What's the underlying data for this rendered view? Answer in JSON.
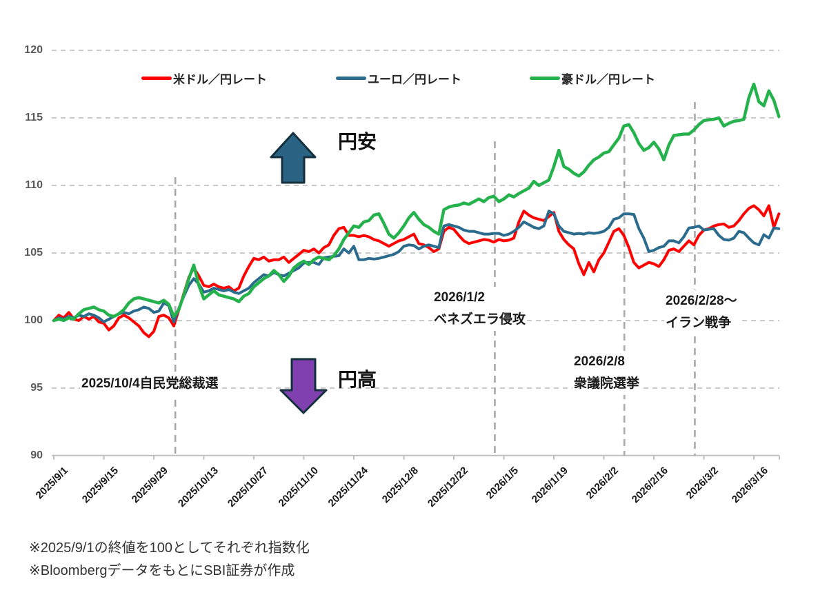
{
  "chart": {
    "y_axis": {
      "min": 90,
      "max": 120,
      "step": 5,
      "labels": [
        "120",
        "115",
        "110",
        "105",
        "100",
        "95",
        "90"
      ]
    },
    "x_axis": {
      "tick_labels": [
        "2025/9/1",
        "2025/9/15",
        "2025/9/29",
        "2025/10/13",
        "2025/10/27",
        "2025/11/10",
        "2025/11/24",
        "2025/12/8",
        "2025/12/22",
        "2026/1/5",
        "2026/1/19",
        "2026/2/2",
        "2026/2/16",
        "2026/3/2",
        "2026/3/16"
      ],
      "weekdays_per_tick": 10
    },
    "legend_position": "top"
  },
  "chart_data": {
    "type": "line",
    "title": "",
    "xlabel": "",
    "ylabel": "",
    "ylim": [
      90,
      120
    ],
    "grid": true,
    "x_unit": "weekday index from 2025/9/1 (every weekday, 0-145)",
    "x_tick_labels": [
      "2025/9/1",
      "2025/9/15",
      "2025/9/29",
      "2025/10/13",
      "2025/10/27",
      "2025/11/10",
      "2025/11/24",
      "2025/12/8",
      "2025/12/22",
      "2026/1/5",
      "2026/1/19",
      "2026/2/2",
      "2026/2/16",
      "2026/3/2",
      "2026/3/16"
    ],
    "x_tick_indices": [
      0,
      10,
      20,
      30,
      40,
      50,
      60,
      70,
      80,
      90,
      100,
      110,
      120,
      130,
      140
    ],
    "series": [
      {
        "name": "米ドル／円レート",
        "color": "#ff0000",
        "values": [
          100,
          100.4,
          100.2,
          100.6,
          100.1,
          100,
          100.3,
          100.1,
          100.3,
          99.9,
          99.8,
          99.3,
          99.6,
          100.2,
          100.4,
          100.2,
          99.9,
          99.6,
          99.1,
          98.8,
          99.2,
          100.3,
          100.4,
          100.2,
          99.6,
          100.8,
          102,
          103.2,
          103.9,
          103.3,
          102.6,
          102.5,
          102.7,
          102.5,
          102.4,
          102.5,
          102.2,
          102.4,
          103.3,
          104,
          104.6,
          104.5,
          104.7,
          104.4,
          104.5,
          104.5,
          104.7,
          104.3,
          104.6,
          104.9,
          105.2,
          105.1,
          105.3,
          105,
          105.4,
          105.6,
          106.3,
          106.8,
          106.9,
          106.3,
          106.3,
          106.2,
          106.3,
          106.2,
          106,
          105.9,
          105.7,
          105.5,
          105.7,
          105.9,
          106,
          106.2,
          106.4,
          105.7,
          105.6,
          105.4,
          105.1,
          105.3,
          106.6,
          106.9,
          106.75,
          106.3,
          105.9,
          105.7,
          105.8,
          105.9,
          106,
          105.95,
          105.8,
          106,
          105.9,
          105.95,
          106.1,
          107.3,
          108.1,
          107.8,
          107.6,
          107.5,
          107.4,
          107.7,
          108,
          106.6,
          106,
          105.6,
          105.3,
          104.2,
          103.4,
          104.3,
          103.6,
          104.5,
          105,
          105.8,
          106.6,
          106.8,
          106.3,
          105.4,
          104.3,
          103.9,
          104.1,
          104.3,
          104.2,
          104,
          104.5,
          105.2,
          105.3,
          105.1,
          105.5,
          105.9,
          105.6,
          106.3,
          106.7,
          106.8,
          107,
          107.1,
          107.15,
          106.9,
          107,
          107.4,
          107.9,
          108.3,
          108.5,
          108.2,
          107.75,
          108.5,
          106.9,
          107.9
        ]
      },
      {
        "name": "ユーロ／円レート",
        "color": "#2b6b8d",
        "values": [
          100,
          100.2,
          100.1,
          100.3,
          100.2,
          100.4,
          100.3,
          100.5,
          100.4,
          100.2,
          99.9,
          100.1,
          100.3,
          100.5,
          100.6,
          100.5,
          100.7,
          100.8,
          101,
          100.9,
          100.6,
          100.7,
          101.3,
          101.1,
          99.9,
          100.9,
          101.8,
          102.6,
          103.1,
          102.7,
          102.1,
          102.2,
          102.4,
          102.3,
          102.2,
          102.3,
          102.1,
          102,
          102.2,
          102.4,
          102.8,
          103.1,
          103.4,
          103.3,
          103.55,
          103.4,
          103.3,
          103.5,
          103.7,
          103.9,
          104.25,
          104.3,
          104.3,
          104.15,
          104.65,
          104.7,
          104.75,
          104.8,
          105.3,
          105,
          105.5,
          104.5,
          104.5,
          104.6,
          104.55,
          104.6,
          104.7,
          104.8,
          104.9,
          105.1,
          105.5,
          105.6,
          105.55,
          105.3,
          105.5,
          105.6,
          105.5,
          105.4,
          107,
          107.1,
          107,
          106.9,
          106.7,
          106.6,
          106.6,
          106.5,
          106.4,
          106.4,
          106.45,
          106.45,
          106.3,
          106.4,
          106.6,
          106.9,
          107.3,
          107.1,
          106.9,
          106.8,
          107,
          108.1,
          107.9,
          107,
          106.6,
          106.5,
          106.4,
          106.45,
          106.4,
          106.5,
          106.45,
          106.5,
          106.6,
          106.9,
          107.5,
          107.6,
          107.9,
          107.9,
          107.85,
          106.8,
          106.1,
          105.1,
          105.2,
          105.4,
          105.5,
          105.9,
          105.9,
          105.75,
          106.2,
          106.85,
          106.9,
          107,
          106.7,
          106.75,
          106.8,
          106.3,
          106,
          105.95,
          106.1,
          106.6,
          106.5,
          106.1,
          105.75,
          105.6,
          106.35,
          106.1,
          106.85,
          106.8
        ]
      },
      {
        "name": "豪ドル／円レート",
        "color": "#25b24d",
        "values": [
          100,
          100.1,
          100,
          100.2,
          100.1,
          100.5,
          100.8,
          100.9,
          101,
          100.8,
          100.7,
          100.4,
          100.3,
          100.5,
          100.8,
          101.3,
          101.6,
          101.7,
          101.6,
          101.5,
          101.4,
          101.3,
          101.5,
          101.2,
          100.3,
          100.8,
          101.9,
          103.1,
          104.1,
          102.6,
          101.6,
          101.9,
          102.2,
          101.9,
          101.8,
          101.7,
          101.6,
          101.4,
          101.8,
          102,
          102.5,
          102.8,
          103.1,
          103.3,
          103.7,
          103.4,
          102.9,
          103.3,
          103.9,
          104.2,
          104.4,
          104.15,
          104.5,
          104.7,
          104.6,
          104.5,
          104.8,
          105.3,
          106,
          106.5,
          107,
          106.9,
          107.3,
          107.4,
          107.8,
          107.9,
          107.2,
          106.4,
          106.1,
          106.5,
          107,
          107.6,
          108,
          107.5,
          107.1,
          106.9,
          106.6,
          106.4,
          108.2,
          108.4,
          108.5,
          108.55,
          108.7,
          108.6,
          108.8,
          109,
          108.8,
          109.1,
          109.2,
          108.8,
          109,
          109.3,
          109.15,
          109.4,
          109.6,
          109.8,
          110.3,
          110,
          110.2,
          110.4,
          111.4,
          112.6,
          111.4,
          111.2,
          110.9,
          110.7,
          111,
          111.5,
          111.9,
          112.1,
          112.4,
          112.5,
          113,
          113.5,
          114.4,
          114.5,
          113.9,
          113.1,
          112.6,
          112.8,
          113.2,
          112.7,
          111.9,
          113,
          113.7,
          113.75,
          113.8,
          113.8,
          114.1,
          114.5,
          114.8,
          114.85,
          114.9,
          115,
          114.4,
          114.6,
          114.75,
          114.8,
          114.9,
          116.5,
          117.5,
          116.2,
          115.9,
          117,
          116.3,
          115.1
        ]
      }
    ],
    "event_lines": [
      {
        "label": "2025/10/4自民党総裁選",
        "day_index": 24.3
      },
      {
        "label": "2026/1/2 ベネズエラ侵攻",
        "day_index": 88.2
      },
      {
        "label": "2026/2/8 衆議院選挙",
        "day_index": 114.1
      },
      {
        "label": "2026/2/28〜 イラン戦争",
        "day_index": 128.2
      }
    ]
  },
  "annotations": {
    "yen_weak": "円安",
    "yen_strong": "円高",
    "event1": {
      "line1": "2025/10/4自民党総裁選"
    },
    "event2": {
      "line1": "2026/1/2",
      "line2": "ベネズエラ侵攻"
    },
    "event3": {
      "line1": "2026/2/8",
      "line2": "衆議院選挙"
    },
    "event4": {
      "line1": "2026/2/28〜",
      "line2": "イラン戦争"
    }
  },
  "footnotes": {
    "line1": "※2025/9/1の終値を100としてそれぞれ指数化",
    "line2": "※BloombergデータをもとにSBI証券が作成"
  },
  "colors": {
    "usd_line": "#ff0000",
    "eur_line": "#2b6b8d",
    "aud_line": "#25b24d",
    "up_arrow_fill": "#2a6384",
    "down_arrow_fill": "#8040b0",
    "arrow_stroke": "#14303d",
    "gridline": "#c9c9c9",
    "axis_line": "#bfbfbf",
    "event_line": "#a8a8a8",
    "y_label": "#595959",
    "x_label": "#1a1a1a"
  }
}
